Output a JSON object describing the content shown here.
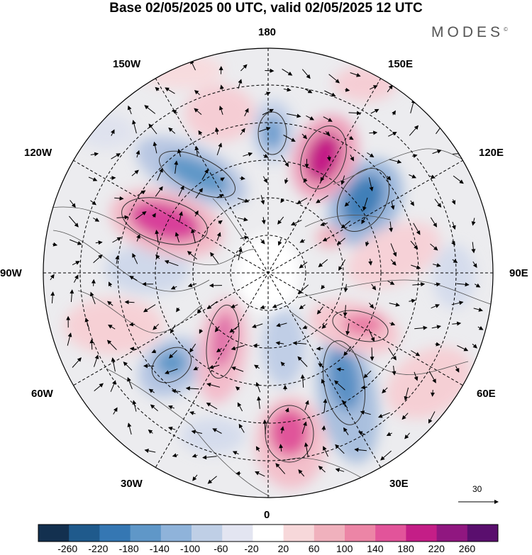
{
  "header": {
    "title": "Base 02/05/2025 00 UTC, valid 02/05/2025 12 UTC"
  },
  "brand": {
    "name": "MODES",
    "mark": "©"
  },
  "longitude_labels": {
    "top": "180",
    "bottom": "0",
    "left": "90W",
    "right": "90E",
    "ul150": "150W",
    "ur150": "150E",
    "ul120": "120W",
    "ur120": "120E",
    "ll60": "60W",
    "lr60": "60E",
    "ll30": "30W",
    "lr30": "30E"
  },
  "wind_reference": {
    "value": "30"
  },
  "colorbar": {
    "colors": [
      "#13304f",
      "#1f5a8c",
      "#3577b3",
      "#5f97c8",
      "#8fb3da",
      "#bfcfe6",
      "#e3e5f1",
      "#ffffff",
      "#f7d8da",
      "#f0b1bd",
      "#ec85a6",
      "#e2549a",
      "#c41e87",
      "#901780",
      "#5a0f6e"
    ],
    "ticks": [
      "-260",
      "-220",
      "-180",
      "-140",
      "-100",
      "-60",
      "-20",
      "20",
      "60",
      "100",
      "140",
      "180",
      "220",
      "260"
    ]
  }
}
